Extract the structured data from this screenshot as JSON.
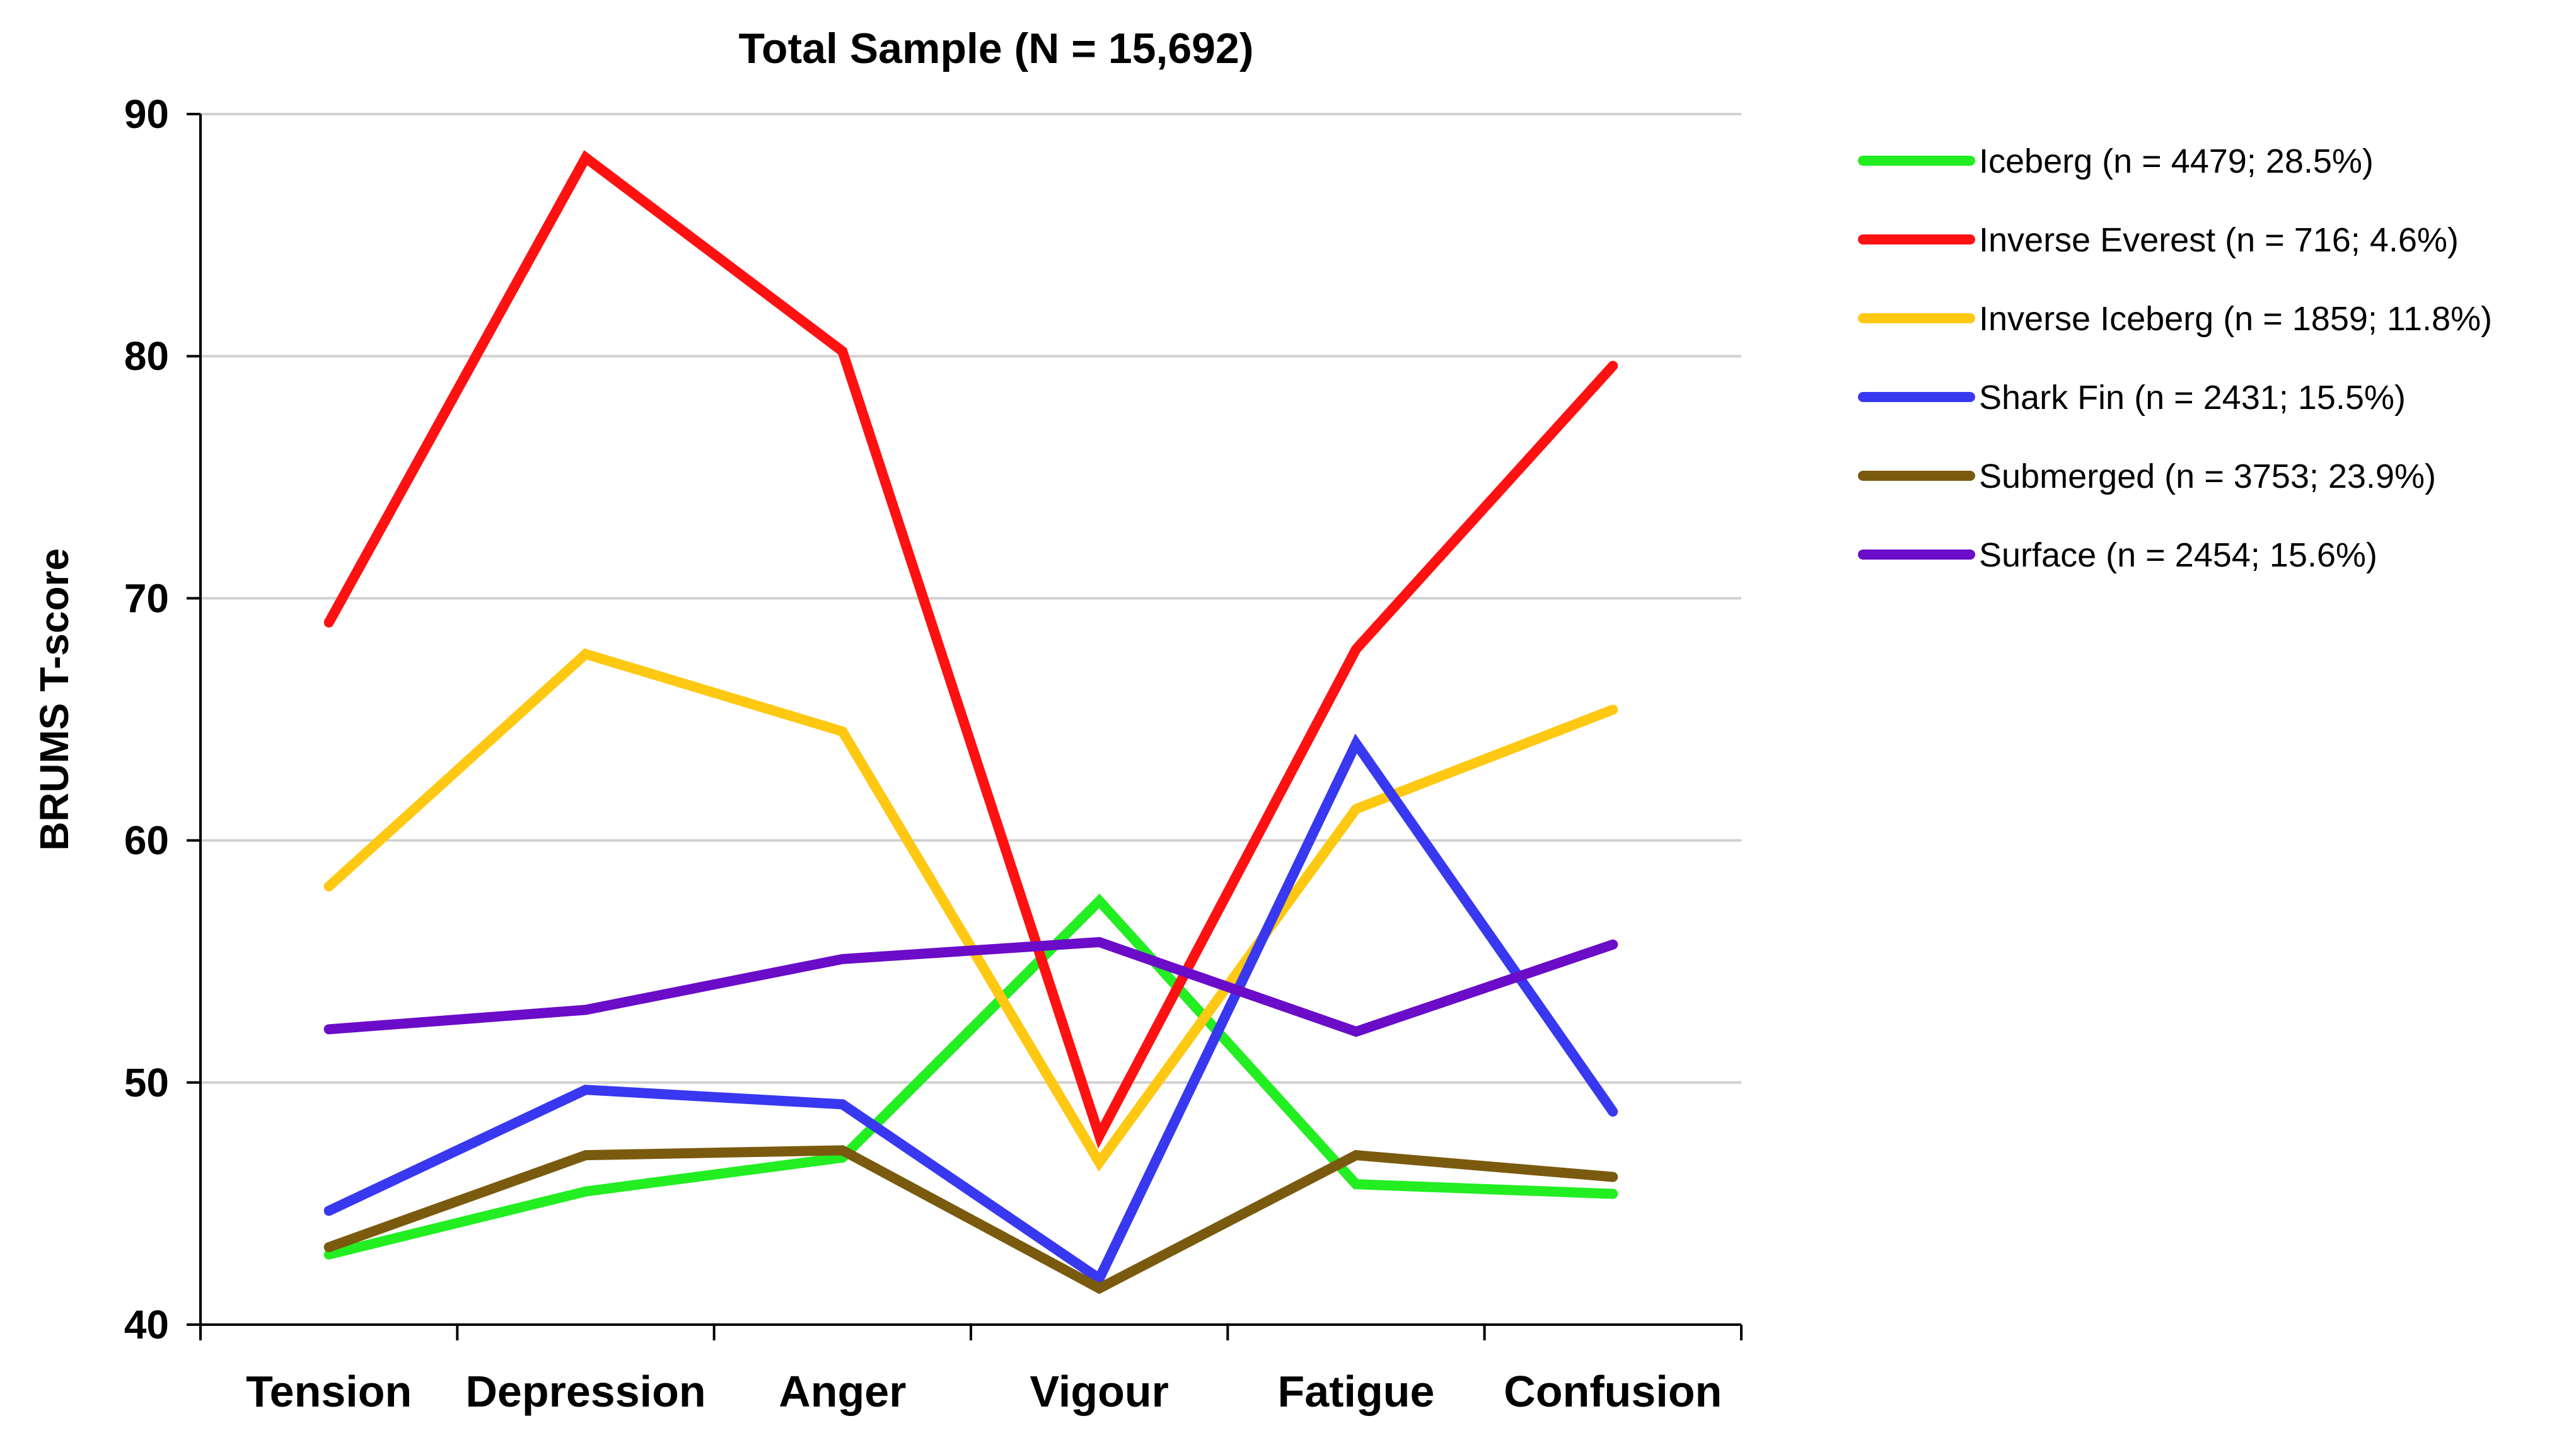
{
  "chart_data": {
    "type": "line",
    "title": "Total Sample (N = 15,692)",
    "xlabel": "",
    "ylabel": "BRUMS T-score",
    "ylim": [
      40,
      90
    ],
    "yticks": [
      40,
      50,
      60,
      70,
      80,
      90
    ],
    "grid": true,
    "legend_position": "right",
    "categories": [
      "Tension",
      "Depression",
      "Anger",
      "Vigour",
      "Fatigue",
      "Confusion"
    ],
    "series": [
      {
        "name": "Iceberg (n = 4479; 28.5%)",
        "color": "#22EE22",
        "values": [
          42.9,
          45.5,
          46.9,
          57.5,
          45.8,
          45.4
        ]
      },
      {
        "name": "Inverse Everest (n = 716; 4.6%)",
        "color": "#FF1111",
        "values": [
          69.0,
          88.2,
          80.2,
          47.8,
          67.9,
          79.6
        ]
      },
      {
        "name": "Inverse Iceberg (n = 1859; 11.8%)",
        "color": "#FFC812",
        "values": [
          58.1,
          67.7,
          64.5,
          46.7,
          61.3,
          65.4
        ]
      },
      {
        "name": "Shark Fin (n = 2431; 15.5%)",
        "color": "#3838F0",
        "values": [
          44.7,
          49.7,
          49.1,
          41.9,
          64.0,
          48.8
        ]
      },
      {
        "name": "Submerged (n = 3753; 23.9%)",
        "color": "#7A5A0E",
        "values": [
          43.2,
          47.0,
          47.2,
          41.5,
          47.0,
          46.1
        ]
      },
      {
        "name": "Surface (n = 2454; 15.6%)",
        "color": "#6A0CC8",
        "values": [
          52.2,
          53.0,
          55.1,
          55.8,
          52.1,
          55.7
        ]
      }
    ]
  }
}
